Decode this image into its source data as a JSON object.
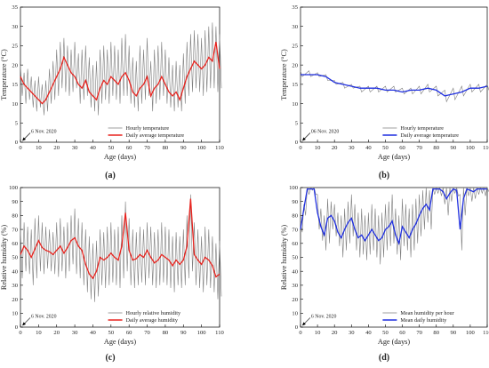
{
  "figure": {
    "panels_shown": 4
  },
  "chart_data": [
    {
      "panel": "(a)",
      "type": "line",
      "xlabel": "Age (days)",
      "ylabel": "Temperature (°C)",
      "xlim": [
        0,
        110
      ],
      "ylim": [
        0,
        35
      ],
      "xticks": [
        0,
        10,
        20,
        30,
        40,
        50,
        60,
        70,
        80,
        90,
        100,
        110
      ],
      "yticks": [
        0,
        5,
        10,
        15,
        20,
        25,
        30,
        35
      ],
      "annotation": "6 Nov. 2020",
      "legend_position": "lower-right",
      "hourly": {
        "name": "Hourly temperature",
        "color": "#7f7f7f",
        "x": [
          0,
          2,
          4,
          6,
          8,
          10,
          12,
          14,
          16,
          18,
          20,
          22,
          24,
          26,
          28,
          30,
          32,
          34,
          36,
          38,
          40,
          42,
          44,
          46,
          48,
          50,
          52,
          54,
          56,
          58,
          60,
          62,
          64,
          66,
          68,
          70,
          72,
          74,
          76,
          78,
          80,
          82,
          84,
          86,
          88,
          90,
          92,
          94,
          96,
          98,
          100,
          102,
          104,
          106,
          108,
          110
        ],
        "low": [
          12,
          10,
          11,
          9,
          8,
          9,
          7,
          8,
          10,
          11,
          12,
          14,
          13,
          12,
          13,
          14,
          10,
          11,
          12,
          9,
          8,
          7,
          10,
          11,
          10,
          12,
          11,
          10,
          12,
          12,
          10,
          9,
          8,
          10,
          11,
          12,
          8,
          10,
          11,
          12,
          10,
          9,
          8,
          9,
          8,
          10,
          12,
          13,
          14,
          13,
          12,
          13,
          14,
          14,
          13,
          14
        ],
        "high": [
          20,
          18,
          19,
          17,
          16,
          17,
          15,
          16,
          19,
          21,
          24,
          26,
          27,
          25,
          24,
          26,
          23,
          24,
          25,
          22,
          20,
          21,
          24,
          25,
          24,
          26,
          25,
          24,
          27,
          28,
          25,
          22,
          21,
          25,
          24,
          27,
          21,
          24,
          25,
          26,
          24,
          22,
          20,
          21,
          20,
          23,
          26,
          28,
          29,
          28,
          27,
          29,
          30,
          31,
          30,
          28
        ]
      },
      "daily": {
        "name": "Daily average temperature",
        "color": "#e8231e",
        "x": [
          0,
          2,
          4,
          6,
          8,
          10,
          12,
          14,
          16,
          18,
          20,
          22,
          24,
          26,
          28,
          30,
          32,
          34,
          36,
          38,
          40,
          42,
          44,
          46,
          48,
          50,
          52,
          54,
          56,
          58,
          60,
          62,
          64,
          66,
          68,
          70,
          72,
          74,
          76,
          78,
          80,
          82,
          84,
          86,
          88,
          90,
          92,
          94,
          96,
          98,
          100,
          102,
          104,
          106,
          108,
          110
        ],
        "values": [
          17,
          15,
          14,
          13,
          12,
          11,
          10,
          11,
          13,
          15,
          17,
          19,
          22,
          20,
          18,
          17,
          15,
          14,
          16,
          13,
          12,
          11,
          14,
          16,
          15,
          17,
          16,
          15,
          17,
          18,
          16,
          13,
          12,
          14,
          15,
          17,
          12,
          14,
          15,
          17,
          15,
          13,
          12,
          13,
          11,
          14,
          17,
          19,
          21,
          20,
          19,
          20,
          22,
          21,
          26,
          19
        ]
      }
    },
    {
      "panel": "(b)",
      "type": "line",
      "xlabel": "Age (days)",
      "ylabel": "Temperature (°C)",
      "xlim": [
        0,
        110
      ],
      "ylim": [
        0,
        35
      ],
      "xticks": [
        0,
        10,
        20,
        30,
        40,
        50,
        60,
        70,
        80,
        90,
        100,
        110
      ],
      "yticks": [
        0,
        5,
        10,
        15,
        20,
        25,
        30,
        35
      ],
      "annotation": "06 Nov. 2020",
      "legend_position": "lower-right",
      "hourly": {
        "name": "Hourly temperature",
        "color": "#7f7f7f",
        "x": [
          0,
          5,
          10,
          15,
          20,
          25,
          30,
          35,
          40,
          45,
          50,
          55,
          60,
          65,
          70,
          75,
          80,
          85,
          90,
          95,
          100,
          105,
          110
        ],
        "low": [
          17,
          17,
          17,
          16,
          15,
          14,
          14,
          13,
          13,
          13,
          13,
          13,
          12.5,
          12.5,
          12.5,
          13,
          12,
          10.5,
          11,
          12,
          13,
          13,
          13.5
        ],
        "high": [
          18.5,
          18.5,
          18,
          17.5,
          16,
          15.5,
          15,
          14.5,
          14.5,
          14.5,
          14.5,
          14.5,
          14,
          14,
          14.5,
          15,
          14.5,
          13.5,
          14,
          14.5,
          15,
          15,
          15
        ]
      },
      "daily": {
        "name": "Daily average temperature",
        "color": "#1f2fe0",
        "x": [
          0,
          5,
          10,
          15,
          20,
          25,
          30,
          35,
          40,
          45,
          50,
          55,
          60,
          65,
          70,
          75,
          80,
          85,
          90,
          95,
          100,
          105,
          110
        ],
        "values": [
          17.5,
          17.5,
          17.5,
          17,
          15.5,
          15,
          14.5,
          14,
          14,
          14,
          13.5,
          13.5,
          13,
          13.5,
          13.5,
          14,
          13.5,
          12,
          12.5,
          13,
          14,
          14,
          14.5
        ]
      }
    },
    {
      "panel": "(c)",
      "type": "line",
      "xlabel": "Age (days)",
      "ylabel": "Relative humidity (%)",
      "xlim": [
        0,
        110
      ],
      "ylim": [
        0,
        100
      ],
      "xticks": [
        0,
        10,
        20,
        30,
        40,
        50,
        60,
        70,
        80,
        90,
        100,
        110
      ],
      "yticks": [
        0,
        10,
        20,
        30,
        40,
        50,
        60,
        70,
        80,
        90,
        100
      ],
      "annotation": "6 Nov. 2020",
      "legend_position": "lower-right",
      "hourly": {
        "name": "Hourly relative humidity",
        "color": "#7f7f7f",
        "x": [
          0,
          2,
          4,
          6,
          8,
          10,
          12,
          14,
          16,
          18,
          20,
          22,
          24,
          26,
          28,
          30,
          32,
          34,
          36,
          38,
          40,
          42,
          44,
          46,
          48,
          50,
          52,
          54,
          56,
          58,
          60,
          62,
          64,
          66,
          68,
          70,
          72,
          74,
          76,
          78,
          80,
          82,
          84,
          86,
          88,
          90,
          92,
          94,
          96,
          98,
          100,
          102,
          104,
          106,
          108,
          110
        ],
        "low": [
          35,
          40,
          38,
          30,
          35,
          40,
          38,
          42,
          40,
          38,
          36,
          40,
          35,
          40,
          45,
          38,
          35,
          30,
          25,
          20,
          18,
          22,
          30,
          28,
          30,
          32,
          30,
          28,
          35,
          40,
          30,
          28,
          30,
          32,
          30,
          35,
          30,
          28,
          30,
          32,
          30,
          28,
          25,
          30,
          28,
          30,
          35,
          40,
          30,
          28,
          25,
          30,
          28,
          25,
          20,
          22
        ],
        "high": [
          70,
          75,
          72,
          70,
          78,
          80,
          75,
          72,
          70,
          68,
          75,
          78,
          72,
          75,
          80,
          85,
          78,
          75,
          70,
          65,
          60,
          62,
          70,
          68,
          72,
          75,
          70,
          72,
          80,
          90,
          78,
          70,
          68,
          72,
          70,
          75,
          72,
          68,
          70,
          75,
          72,
          70,
          65,
          68,
          65,
          70,
          80,
          95,
          75,
          70,
          65,
          72,
          70,
          65,
          60,
          62
        ]
      },
      "daily": {
        "name": "Daily average humidity",
        "color": "#e8231e",
        "x": [
          0,
          2,
          4,
          6,
          8,
          10,
          12,
          14,
          16,
          18,
          20,
          22,
          24,
          26,
          28,
          30,
          32,
          34,
          36,
          38,
          40,
          42,
          44,
          46,
          48,
          50,
          52,
          54,
          56,
          58,
          60,
          62,
          64,
          66,
          68,
          70,
          72,
          74,
          76,
          78,
          80,
          82,
          84,
          86,
          88,
          90,
          92,
          94,
          96,
          98,
          100,
          102,
          104,
          106,
          108,
          110
        ],
        "values": [
          52,
          58,
          55,
          50,
          56,
          62,
          57,
          55,
          54,
          52,
          55,
          58,
          53,
          57,
          62,
          64,
          58,
          55,
          45,
          38,
          35,
          40,
          50,
          48,
          50,
          53,
          50,
          48,
          58,
          82,
          55,
          48,
          49,
          52,
          50,
          55,
          50,
          46,
          48,
          52,
          50,
          48,
          44,
          48,
          45,
          48,
          58,
          92,
          52,
          48,
          45,
          50,
          48,
          44,
          36,
          38
        ]
      }
    },
    {
      "panel": "(d)",
      "type": "line",
      "xlabel": "Age (days)",
      "ylabel": "Relative humidity (%)",
      "xlim": [
        0,
        110
      ],
      "ylim": [
        0,
        100
      ],
      "xticks": [
        0,
        10,
        20,
        30,
        40,
        50,
        60,
        70,
        80,
        90,
        100,
        110
      ],
      "yticks": [
        0,
        10,
        20,
        30,
        40,
        50,
        60,
        70,
        80,
        90,
        100
      ],
      "annotation": "6 Nov. 2020",
      "legend_position": "lower-right",
      "hourly": {
        "name": "Mean humidity per hour",
        "color": "#7f7f7f",
        "x": [
          0,
          2,
          4,
          6,
          8,
          10,
          12,
          14,
          16,
          18,
          20,
          22,
          24,
          26,
          28,
          30,
          32,
          34,
          36,
          38,
          40,
          42,
          44,
          46,
          48,
          50,
          52,
          54,
          56,
          58,
          60,
          62,
          64,
          66,
          68,
          70,
          72,
          74,
          76,
          78,
          80,
          82,
          84,
          86,
          88,
          90,
          92,
          94,
          96,
          98,
          100,
          102,
          104,
          106,
          108,
          110
        ],
        "low": [
          68,
          80,
          95,
          98,
          95,
          70,
          62,
          55,
          60,
          70,
          65,
          58,
          50,
          55,
          60,
          65,
          55,
          50,
          52,
          48,
          52,
          55,
          50,
          45,
          50,
          55,
          58,
          60,
          52,
          48,
          58,
          55,
          50,
          55,
          60,
          65,
          70,
          75,
          70,
          95,
          96,
          94,
          88,
          80,
          90,
          96,
          94,
          55,
          80,
          94,
          90,
          92,
          95,
          96,
          94,
          97
        ],
        "high": [
          75,
          88,
          100,
          100,
          100,
          95,
          85,
          80,
          92,
          90,
          88,
          82,
          80,
          85,
          90,
          95,
          88,
          82,
          85,
          80,
          82,
          88,
          85,
          80,
          82,
          88,
          90,
          95,
          85,
          80,
          92,
          88,
          85,
          88,
          92,
          95,
          98,
          100,
          98,
          100,
          100,
          100,
          100,
          100,
          100,
          100,
          100,
          95,
          100,
          100,
          100,
          100,
          100,
          100,
          100,
          100
        ]
      },
      "daily": {
        "name": "Mean daily humidity",
        "color": "#1f2fe0",
        "x": [
          0,
          2,
          4,
          6,
          8,
          10,
          12,
          14,
          16,
          18,
          20,
          22,
          24,
          26,
          28,
          30,
          32,
          34,
          36,
          38,
          40,
          42,
          44,
          46,
          48,
          50,
          52,
          54,
          56,
          58,
          60,
          62,
          64,
          66,
          68,
          70,
          72,
          74,
          76,
          78,
          80,
          82,
          84,
          86,
          88,
          90,
          92,
          94,
          96,
          98,
          100,
          102,
          104,
          106,
          108,
          110
        ],
        "values": [
          70,
          85,
          99,
          99,
          99,
          82,
          72,
          66,
          78,
          80,
          76,
          68,
          64,
          70,
          75,
          78,
          70,
          64,
          66,
          62,
          66,
          70,
          66,
          62,
          64,
          70,
          72,
          76,
          66,
          60,
          72,
          68,
          64,
          70,
          74,
          80,
          85,
          88,
          84,
          99,
          99,
          99,
          97,
          92,
          96,
          99,
          98,
          70,
          92,
          99,
          98,
          97,
          99,
          99,
          99,
          99
        ]
      }
    }
  ]
}
